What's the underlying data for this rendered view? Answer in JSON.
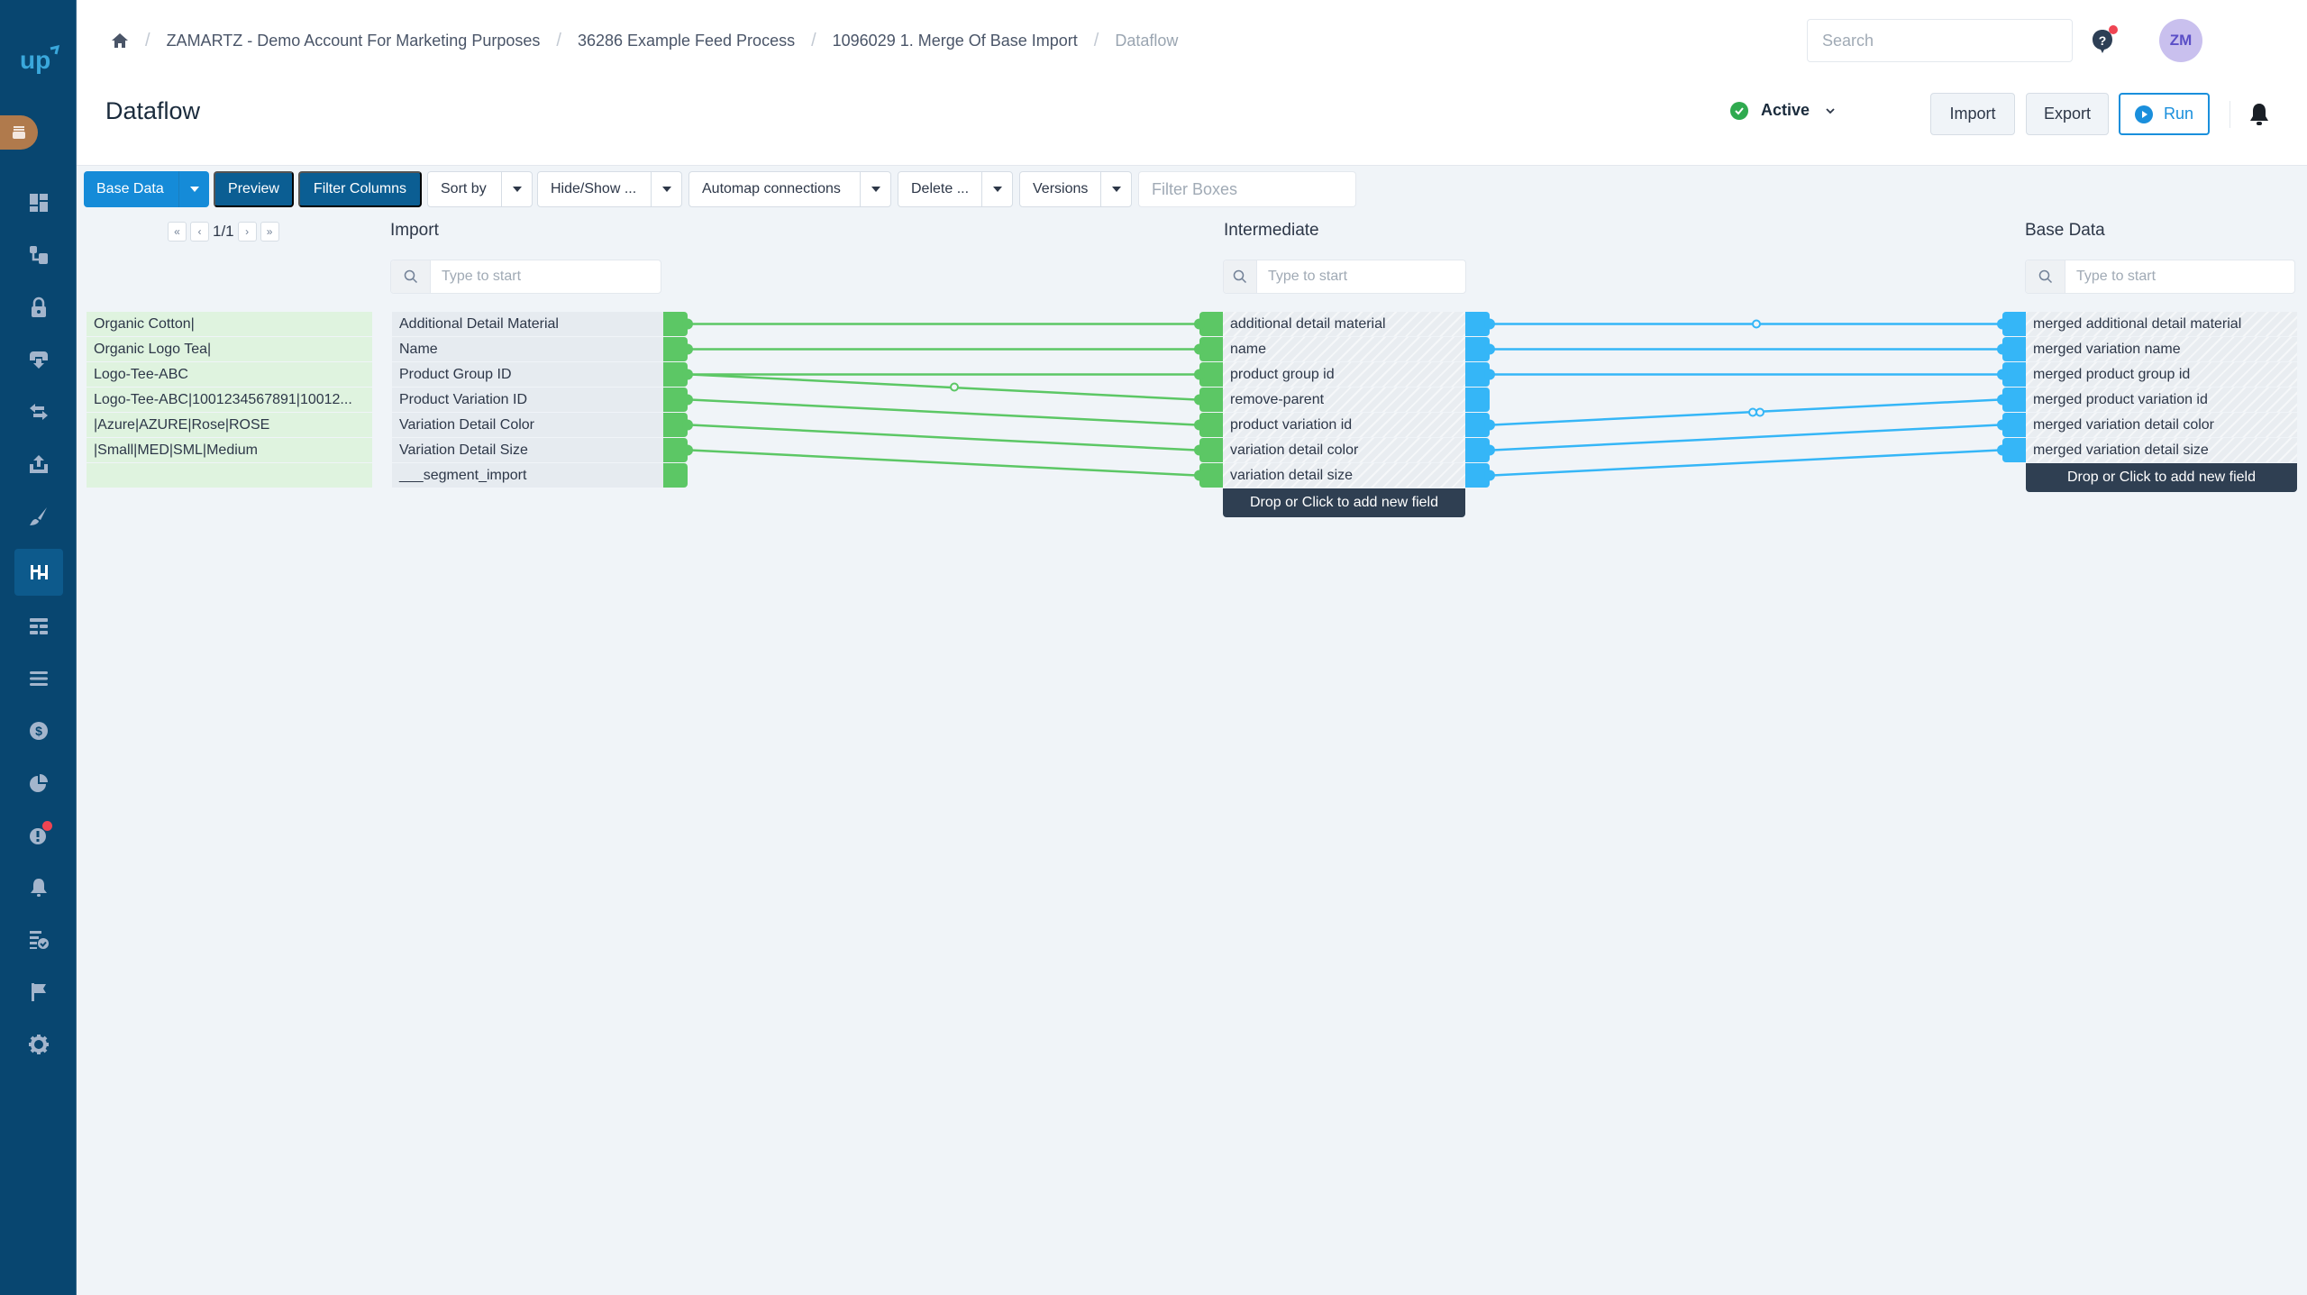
{
  "sidebar": {
    "logo": "up",
    "items": [
      {
        "icon": "dashboard-icon",
        "active": false
      },
      {
        "icon": "hierarchy-icon",
        "active": false
      },
      {
        "icon": "lock-icon",
        "active": false
      },
      {
        "icon": "inbox-download-icon",
        "active": false
      },
      {
        "icon": "exchange-icon",
        "active": false
      },
      {
        "icon": "upload-icon",
        "active": false
      },
      {
        "icon": "brush-icon",
        "active": false
      },
      {
        "icon": "dataflow-icon",
        "active": true
      },
      {
        "icon": "table-icon",
        "active": false
      },
      {
        "icon": "list-icon",
        "active": false
      },
      {
        "icon": "dollar-icon",
        "active": false
      },
      {
        "icon": "pie-chart-icon",
        "active": false
      },
      {
        "icon": "alert-icon",
        "active": false,
        "badge": true
      },
      {
        "icon": "bell-icon",
        "active": false
      },
      {
        "icon": "checklist-icon",
        "active": false
      },
      {
        "icon": "flag-icon",
        "active": false
      },
      {
        "icon": "gear-icon",
        "active": false
      }
    ]
  },
  "header": {
    "breadcrumb": [
      "ZAMARTZ - Demo Account For Marketing Purposes",
      "36286 Example Feed Process",
      "1096029 1. Merge Of Base Import",
      "Dataflow"
    ],
    "title": "Dataflow",
    "search_placeholder": "Search",
    "avatar_initials": "ZM",
    "status": "Active",
    "import_label": "Import",
    "export_label": "Export",
    "run_label": "Run"
  },
  "toolbar": {
    "base_data": "Base Data",
    "preview": "Preview",
    "filter_columns": "Filter Columns",
    "sort_by": "Sort by",
    "hide_show": "Hide/Show ...",
    "automap": "Automap connections",
    "delete": "Delete ...",
    "versions": "Versions",
    "filter_boxes_placeholder": "Filter Boxes"
  },
  "pager": {
    "first": "«",
    "prev": "‹",
    "page": "1/1",
    "next": "›",
    "last": "»"
  },
  "preview_values": [
    "Organic Cotton|",
    "Organic Logo Tea|",
    "Logo-Tee-ABC",
    "Logo-Tee-ABC|1001234567891|10012...",
    "|Azure|AZURE|Rose|ROSE",
    "|Small|MED|SML|Medium",
    ""
  ],
  "columns": {
    "import": {
      "title": "Import",
      "search_placeholder": "Type to start",
      "fields": [
        "Additional Detail Material",
        "Name",
        "Product Group ID",
        "Product Variation ID",
        "Variation Detail Color",
        "Variation Detail Size",
        "___segment_import"
      ]
    },
    "intermediate": {
      "title": "Intermediate",
      "search_placeholder": "Type to start",
      "fields": [
        "additional detail material",
        "name",
        "product group id",
        "remove-parent",
        "product variation id",
        "variation detail color",
        "variation detail size"
      ],
      "add_field_label": "Drop or Click to add new field"
    },
    "base_data": {
      "title": "Base Data",
      "search_placeholder": "Type to start",
      "fields": [
        "merged additional detail material",
        "merged variation name",
        "merged product group id",
        "merged product variation id",
        "merged variation detail color",
        "merged variation detail size"
      ],
      "add_field_label": "Drop or Click to add new field"
    }
  },
  "connections": {
    "import_to_intermediate": [
      [
        0,
        0
      ],
      [
        1,
        1
      ],
      [
        2,
        2
      ],
      [
        2,
        3
      ],
      [
        3,
        4
      ],
      [
        4,
        5
      ],
      [
        5,
        6
      ]
    ],
    "intermediate_to_base": [
      [
        0,
        0
      ],
      [
        1,
        1
      ],
      [
        2,
        2
      ],
      [
        4,
        3
      ],
      [
        5,
        4
      ],
      [
        6,
        5
      ]
    ]
  },
  "colors": {
    "sidebar": "#084670",
    "accent": "#158bd8",
    "import_handle": "#5cc765",
    "base_handle": "#35b6f7",
    "active_status": "#2faa4f"
  }
}
